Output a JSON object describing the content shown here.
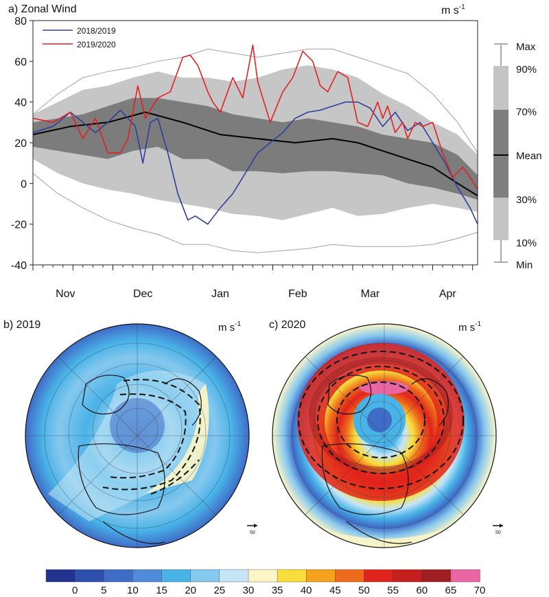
{
  "panel_a": {
    "title": "a) Zonal Wind",
    "unit": "m s",
    "unit_exp": "-1",
    "legend": [
      "2018/2019",
      "2019/2020"
    ],
    "stat_legend": [
      "Max",
      "90%",
      "70%",
      "Mean",
      "30%",
      "10%",
      "Min"
    ]
  },
  "panel_b": {
    "title": "b) 2019",
    "unit": "m s",
    "unit_exp": "-1",
    "ref_vector": "50"
  },
  "panel_c": {
    "title": "c) 2020",
    "unit": "m s",
    "unit_exp": "-1",
    "ref_vector": "50"
  },
  "colorbar": {
    "labels": [
      "0",
      "5",
      "10",
      "15",
      "20",
      "25",
      "30",
      "35",
      "40",
      "45",
      "50",
      "55",
      "60",
      "65",
      "70"
    ],
    "colors": [
      "#22328f",
      "#2d4fae",
      "#3f6cc7",
      "#4f8bd8",
      "#49b3e8",
      "#86c8ee",
      "#c4e6f6",
      "#fbf5c8",
      "#f9dd3a",
      "#f7a21d",
      "#ee6a1c",
      "#e0231c",
      "#c41e1e",
      "#a01d22",
      "#e966a5"
    ]
  },
  "chart_data": [
    {
      "type": "line",
      "title": "a) Zonal Wind",
      "ylabel": "m s-1",
      "ylim": [
        -40,
        80
      ],
      "yticks": [
        -40,
        -20,
        0,
        20,
        40,
        60,
        80
      ],
      "x_ticks": [
        "Nov",
        "Dec",
        "Jan",
        "Feb",
        "Mar",
        "Apr"
      ],
      "x_day_range": [
        0,
        178
      ],
      "month_positions": [
        13,
        44,
        75,
        106,
        135,
        166
      ],
      "series": [
        {
          "name": "2018/2019",
          "color": "#2e3e9a",
          "days": [
            0,
            8,
            15,
            20,
            25,
            30,
            35,
            38,
            41,
            44,
            47,
            50,
            54,
            58,
            62,
            65,
            70,
            75,
            80,
            85,
            90,
            95,
            100,
            105,
            110,
            115,
            120,
            125,
            130,
            135,
            140,
            145,
            150,
            155,
            160,
            165,
            170,
            175,
            178
          ],
          "values": [
            25,
            28,
            35,
            30,
            25,
            30,
            36,
            32,
            28,
            10,
            30,
            32,
            15,
            -5,
            -18,
            -16,
            -20,
            -12,
            -5,
            5,
            15,
            20,
            25,
            32,
            35,
            36,
            38,
            40,
            40,
            37,
            28,
            35,
            26,
            30,
            20,
            10,
            -2,
            -12,
            -20
          ]
        },
        {
          "name": "2019/2020",
          "color": "#e02020",
          "days": [
            0,
            8,
            15,
            20,
            25,
            30,
            35,
            38,
            42,
            45,
            50,
            55,
            60,
            63,
            66,
            70,
            72,
            75,
            80,
            84,
            88,
            90,
            95,
            100,
            104,
            108,
            112,
            115,
            118,
            122,
            126,
            130,
            134,
            138,
            140,
            142,
            145,
            148,
            150,
            153,
            156,
            160,
            164,
            168,
            172,
            175,
            178
          ],
          "values": [
            32,
            30,
            35,
            22,
            32,
            15,
            15,
            22,
            48,
            32,
            42,
            45,
            62,
            63,
            58,
            45,
            40,
            35,
            52,
            42,
            68,
            50,
            30,
            45,
            52,
            65,
            60,
            48,
            45,
            55,
            52,
            30,
            28,
            40,
            32,
            38,
            25,
            30,
            22,
            30,
            28,
            30,
            15,
            3,
            8,
            3,
            -3
          ]
        }
      ],
      "mean": {
        "name": "Mean",
        "days": [
          0,
          15,
          30,
          45,
          60,
          75,
          90,
          105,
          120,
          130,
          145,
          160,
          170,
          178
        ],
        "values": [
          24,
          28,
          30,
          35,
          30,
          24,
          22,
          20,
          22,
          20,
          14,
          8,
          0,
          -6
        ]
      },
      "bands": {
        "days": [
          0,
          10,
          20,
          30,
          40,
          50,
          60,
          70,
          80,
          90,
          100,
          110,
          120,
          130,
          140,
          150,
          160,
          170,
          178
        ],
        "min": [
          5,
          -5,
          -12,
          -18,
          -22,
          -25,
          -30,
          -30,
          -33,
          -34,
          -33,
          -32,
          -30,
          -31,
          -31,
          -31,
          -30,
          -27,
          -24
        ],
        "p10": [
          12,
          5,
          0,
          -3,
          -5,
          -8,
          -10,
          -12,
          -15,
          -16,
          -18,
          -15,
          -12,
          -16,
          -15,
          -12,
          -10,
          -12,
          -14
        ],
        "p30": [
          18,
          16,
          14,
          12,
          16,
          18,
          12,
          12,
          6,
          6,
          5,
          6,
          6,
          5,
          4,
          0,
          -2,
          -5,
          -8
        ],
        "p70": [
          30,
          32,
          34,
          38,
          42,
          42,
          40,
          38,
          34,
          32,
          30,
          32,
          30,
          28,
          24,
          22,
          20,
          14,
          4
        ],
        "p90": [
          34,
          40,
          46,
          48,
          52,
          55,
          52,
          52,
          50,
          52,
          56,
          58,
          56,
          52,
          44,
          38,
          30,
          24,
          14
        ],
        "max": [
          34,
          44,
          52,
          55,
          57,
          60,
          62,
          66,
          64,
          62,
          64,
          66,
          66,
          62,
          58,
          54,
          44,
          30,
          15
        ]
      },
      "grid": false,
      "legend_position": "top-left"
    },
    {
      "type": "heatmap",
      "title": "b) 2019",
      "projection": "orthographic-north-polar",
      "field": "zonal wind",
      "peak_wind_band": "30-40"
    },
    {
      "type": "heatmap",
      "title": "c) 2020",
      "projection": "orthographic-north-polar",
      "field": "zonal wind",
      "peak_wind_band": "55-70"
    }
  ]
}
